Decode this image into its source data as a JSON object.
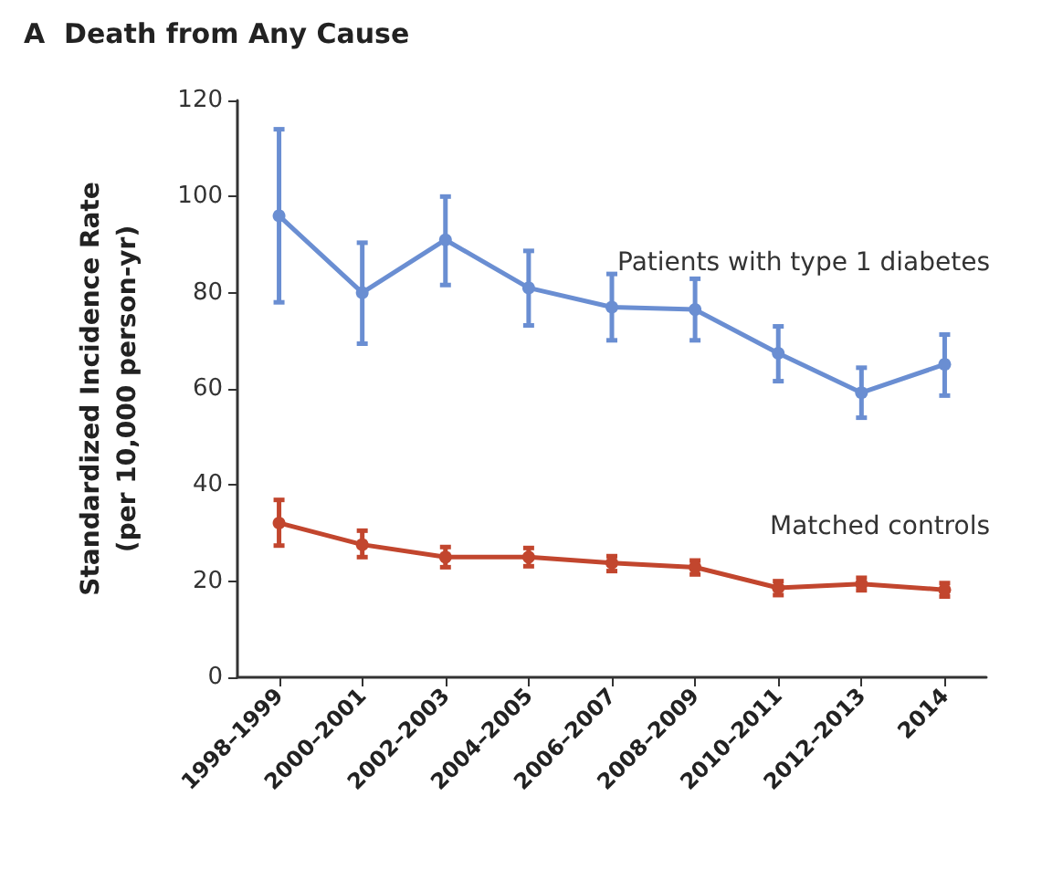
{
  "chart_data": {
    "type": "line",
    "title": "A  Death from Any Cause",
    "ylabel": "Standardized Incidence Rate\n(per 10,000 person-yr)",
    "categories": [
      "1998–1999",
      "2000–2001",
      "2002–2003",
      "2004–2005",
      "2006–2007",
      "2008–2009",
      "2010–2011",
      "2012–2013",
      "2014"
    ],
    "series": [
      {
        "name": "Patients with type 1 diabetes",
        "color": "#6a8ed2",
        "values": [
          96,
          80,
          91,
          81,
          77,
          76.5,
          67.4,
          59.2,
          65.1
        ],
        "errors": [
          [
            78,
            114
          ],
          [
            69.4,
            90.4
          ],
          [
            81.6,
            100
          ],
          [
            73.2,
            88.7
          ],
          [
            70.1,
            83.9
          ],
          [
            70.1,
            82.9
          ],
          [
            61.6,
            73
          ],
          [
            54,
            64.4
          ],
          [
            58.6,
            71.3
          ]
        ]
      },
      {
        "name": "Matched controls",
        "color": "#c2462e",
        "values": [
          32.1,
          27.6,
          25,
          25,
          23.8,
          22.9,
          18.6,
          19.4,
          18.2
        ],
        "errors": [
          [
            27.4,
            36.9
          ],
          [
            25,
            30.5
          ],
          [
            22.9,
            27.1
          ],
          [
            23.1,
            26.9
          ],
          [
            22.1,
            25.2
          ],
          [
            21.4,
            24.3
          ],
          [
            17.1,
            20
          ],
          [
            18.1,
            20.7
          ],
          [
            16.8,
            19.6
          ]
        ]
      }
    ],
    "ylim": [
      0,
      120
    ],
    "yticks": [
      0,
      20,
      40,
      60,
      80,
      100,
      120
    ],
    "grid": false,
    "legend": false,
    "marker": "circle",
    "line_style": "solid"
  }
}
